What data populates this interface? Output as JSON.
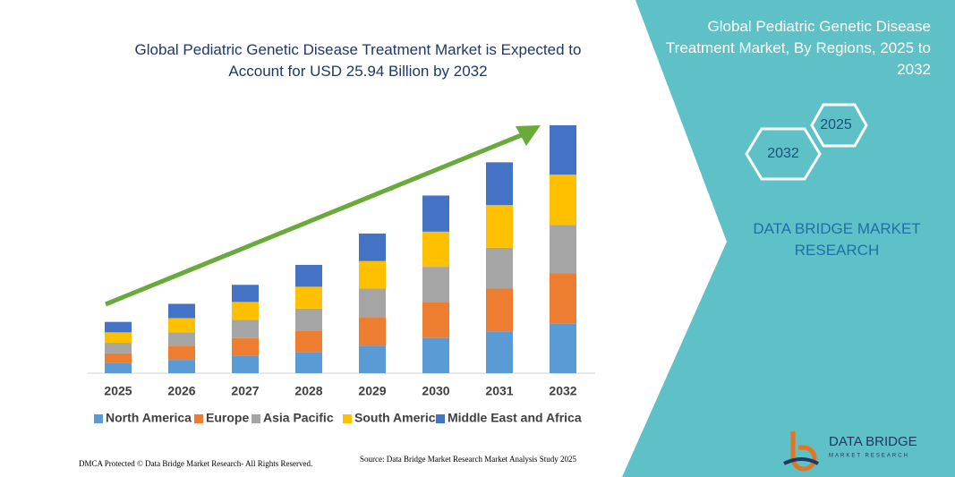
{
  "chart_data": {
    "type": "stacked_bar",
    "title": "Global Pediatric Genetic Disease Treatment Market is Expected to Account for USD 25.94 Billion by 2032",
    "categories": [
      "2025",
      "2026",
      "2027",
      "2028",
      "2029",
      "2030",
      "2031",
      "2032"
    ],
    "series": [
      {
        "name": "North America",
        "color": "#5b9bd5",
        "values": [
          1.1,
          1.4,
          1.8,
          2.2,
          2.9,
          3.7,
          4.4,
          5.2
        ]
      },
      {
        "name": "Europe",
        "color": "#ed7d31",
        "values": [
          1.0,
          1.5,
          1.9,
          2.3,
          3.0,
          3.8,
          4.5,
          5.3
        ]
      },
      {
        "name": "Asia Pacific",
        "color": "#a5a5a5",
        "values": [
          1.1,
          1.4,
          1.9,
          2.3,
          3.0,
          3.7,
          4.3,
          5.1
        ]
      },
      {
        "name": "South America",
        "color": "#ffc000",
        "values": [
          1.1,
          1.5,
          1.9,
          2.3,
          2.9,
          3.7,
          4.5,
          5.3
        ]
      },
      {
        "name": "Middle East and Africa",
        "color": "#4472c4",
        "values": [
          1.1,
          1.5,
          1.8,
          2.3,
          2.9,
          3.8,
          4.5,
          5.2
        ]
      }
    ],
    "ylim": [
      0,
      26
    ],
    "legend": "bottom"
  },
  "panel": {
    "title": "Global Pediatric Genetic Disease Treatment Market, By Regions, 2025 to 2032",
    "hexagons": [
      "2025",
      "2032"
    ],
    "brand": "DATA BRIDGE MARKET RESEARCH"
  },
  "logo": {
    "name": "DATA BRIDGE",
    "tagline": "MARKET RESEARCH"
  },
  "footer": {
    "left": "DMCA Protected © Data Bridge Market Research- All Rights Reserved.",
    "right": "Source: Data Bridge Market Research Market Analysis Study 2025"
  }
}
